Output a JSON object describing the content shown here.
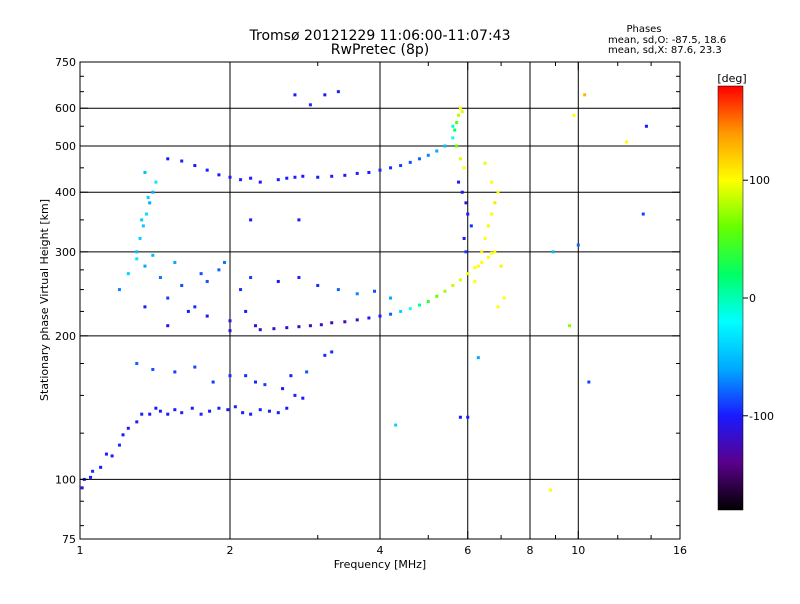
{
  "chart_data": {
    "type": "scatter",
    "title": "Tromsø 20121229 11:06:00-11:07:43",
    "subtitle": "RwPretec (8p)",
    "xlabel": "Frequency [MHz]",
    "ylabel": "Stationary phase Virtual Height [km]",
    "xscale": "log",
    "yscale": "log",
    "xlim": [
      1,
      16
    ],
    "ylim": [
      75,
      750
    ],
    "xticks": [
      {
        "v": 1,
        "label": "1"
      },
      {
        "v": 2,
        "label": "2"
      },
      {
        "v": 4,
        "label": "4"
      },
      {
        "v": 6,
        "label": "6"
      },
      {
        "v": 8,
        "label": "8"
      },
      {
        "v": 10,
        "label": "10"
      },
      {
        "v": 16,
        "label": "16"
      }
    ],
    "xgrid": [
      2,
      4,
      6,
      8,
      10
    ],
    "yticks": [
      {
        "v": 75,
        "label": "75"
      },
      {
        "v": 100,
        "label": "100"
      },
      {
        "v": 200,
        "label": "200"
      },
      {
        "v": 300,
        "label": "300"
      },
      {
        "v": 400,
        "label": "400"
      },
      {
        "v": 500,
        "label": "500"
      },
      {
        "v": 600,
        "label": "600"
      },
      {
        "v": 750,
        "label": "750"
      }
    ],
    "ygrid": [
      100,
      200,
      300,
      400,
      500,
      600
    ],
    "grid": true,
    "stats": {
      "heading": "Phases",
      "line_o": "mean, sd,O: -87.5, 18.6",
      "line_x": "mean, sd,X:  87.6, 23.3"
    },
    "colorbar": {
      "label": "[deg]",
      "range": [
        -180,
        180
      ],
      "ticks": [
        {
          "v": 100,
          "label": "100"
        },
        {
          "v": 0,
          "label": "0"
        },
        {
          "v": -100,
          "label": "-100"
        }
      ],
      "stops": [
        "#000000",
        "#5a008a",
        "#1a1aff",
        "#00aaff",
        "#00ffff",
        "#00ff66",
        "#66ff00",
        "#ffff00",
        "#ff9900",
        "#ff0000"
      ]
    },
    "series": [
      {
        "x": [
          1.01,
          1.02,
          1.05,
          1.06,
          1.1,
          1.13,
          1.16,
          1.2,
          1.22,
          1.25,
          1.3,
          1.33,
          1.38,
          1.42,
          1.45,
          1.5,
          1.55,
          1.6,
          1.68,
          1.75,
          1.82,
          1.9,
          1.98,
          2.05,
          2.12
        ],
        "y": [
          96,
          100,
          101,
          104,
          106,
          113,
          112,
          118,
          124,
          128,
          132,
          137,
          137,
          141,
          139,
          137,
          140,
          138,
          141,
          137,
          139,
          141,
          140,
          142,
          138
        ],
        "phase": [
          -110,
          -105,
          -100,
          -95,
          -100,
          -98,
          -102,
          -96,
          -100,
          -105,
          -100,
          -98,
          -100,
          -102,
          -99,
          -101,
          -100,
          -98,
          -102,
          -97,
          -100,
          -99,
          -101,
          -98,
          -100
        ]
      },
      {
        "x": [
          2.2,
          2.3,
          2.4,
          2.5,
          2.6,
          2.7,
          2.8,
          2.15,
          2.25,
          2.55,
          2.65,
          1.3,
          1.4,
          1.55,
          1.7,
          1.85,
          2.0,
          2.35,
          2.85,
          3.1,
          3.2
        ],
        "y": [
          137,
          140,
          139,
          138,
          141,
          150,
          148,
          165,
          160,
          155,
          165,
          175,
          170,
          168,
          172,
          160,
          165,
          158,
          168,
          182,
          185
        ],
        "phase": [
          -100,
          -98,
          -102,
          -99,
          -100,
          -97,
          -101,
          -95,
          -98,
          -100,
          -99,
          -80,
          -85,
          -90,
          -88,
          -92,
          -95,
          -90,
          -85,
          -95,
          -97
        ]
      },
      {
        "x": [
          2.3,
          2.45,
          2.6,
          2.75,
          2.9,
          3.05,
          3.2,
          3.4,
          3.6,
          3.8,
          4.0,
          4.2,
          4.4,
          4.6,
          4.8,
          5.0,
          5.2,
          5.4,
          5.6,
          5.8,
          6.0,
          6.2,
          6.4,
          6.6,
          6.7,
          6.8
        ],
        "y": [
          206,
          207,
          208,
          209,
          210,
          211,
          213,
          214,
          216,
          218,
          220,
          222,
          225,
          228,
          232,
          236,
          242,
          248,
          255,
          262,
          270,
          278,
          285,
          292,
          298,
          300
        ],
        "phase": [
          -115,
          -118,
          -120,
          -122,
          -125,
          -126,
          -128,
          -125,
          -120,
          -110,
          -100,
          -80,
          -40,
          -20,
          10,
          40,
          60,
          75,
          85,
          90,
          95,
          100,
          100,
          100,
          100,
          100
        ]
      },
      {
        "x": [
          1.2,
          1.25,
          1.3,
          1.35,
          1.4,
          1.45,
          1.5,
          1.55,
          1.6,
          1.7,
          1.8,
          1.9,
          2.0,
          2.1,
          2.2,
          1.35,
          1.5,
          1.65,
          1.8,
          2.0,
          2.25,
          2.5,
          2.75,
          3.0,
          3.3,
          3.6,
          3.9,
          4.2,
          1.75,
          1.95,
          2.15
        ],
        "y": [
          250,
          270,
          290,
          280,
          295,
          265,
          240,
          285,
          255,
          230,
          260,
          275,
          215,
          250,
          265,
          230,
          210,
          225,
          220,
          205,
          210,
          260,
          265,
          255,
          250,
          245,
          248,
          240,
          270,
          285,
          225
        ],
        "phase": [
          -70,
          -40,
          -30,
          -60,
          -50,
          -75,
          -90,
          -60,
          -85,
          -95,
          -85,
          -80,
          -110,
          -95,
          -90,
          -100,
          -105,
          -100,
          -108,
          -112,
          -110,
          -100,
          -98,
          -95,
          -80,
          -70,
          -85,
          -60,
          -85,
          -75,
          -100
        ]
      },
      {
        "x": [
          1.5,
          1.6,
          1.7,
          1.8,
          1.9,
          2.0,
          2.1,
          2.2,
          2.3,
          2.5,
          2.6,
          2.7,
          2.8,
          3.0,
          3.2,
          3.4,
          3.6,
          3.8,
          4.0,
          4.2,
          4.4,
          4.6,
          4.8,
          5.0,
          5.2,
          5.4
        ],
        "y": [
          470,
          465,
          455,
          445,
          435,
          430,
          425,
          428,
          420,
          425,
          428,
          430,
          432,
          430,
          432,
          434,
          438,
          440,
          445,
          450,
          455,
          462,
          470,
          478,
          488,
          500
        ],
        "phase": [
          -100,
          -98,
          -102,
          -99,
          -100,
          -101,
          -97,
          -100,
          -103,
          -99,
          -100,
          -98,
          -101,
          -100,
          -99,
          -102,
          -98,
          -100,
          -97,
          -95,
          -90,
          -85,
          -80,
          -70,
          -60,
          -50
        ]
      },
      {
        "x": [
          5.6,
          5.65,
          5.7,
          5.75,
          5.8,
          5.85,
          5.6,
          5.7,
          5.8,
          5.9,
          5.75,
          5.85,
          5.95,
          6.0,
          6.1,
          5.9,
          5.95
        ],
        "y": [
          520,
          540,
          560,
          580,
          600,
          590,
          550,
          500,
          470,
          450,
          420,
          400,
          380,
          360,
          340,
          320,
          300
        ],
        "phase": [
          -20,
          20,
          50,
          80,
          100,
          90,
          -10,
          60,
          90,
          100,
          -100,
          -100,
          -110,
          -100,
          -95,
          -100,
          -90
        ]
      },
      {
        "x": [
          1.3,
          1.32,
          1.34,
          1.36,
          1.38,
          1.4,
          1.42,
          1.35,
          1.37,
          1.33
        ],
        "y": [
          300,
          320,
          340,
          360,
          380,
          400,
          420,
          440,
          390,
          350
        ],
        "phase": [
          -50,
          -40,
          -45,
          -35,
          -60,
          -55,
          -30,
          -50,
          -40,
          -45
        ]
      },
      {
        "x": [
          6.2,
          6.3,
          6.4,
          6.5,
          6.6,
          6.7,
          6.8,
          6.9,
          7.0,
          7.1,
          6.5,
          6.7,
          6.9
        ],
        "y": [
          260,
          280,
          300,
          320,
          340,
          360,
          380,
          400,
          280,
          240,
          460,
          420,
          230
        ],
        "phase": [
          100,
          100,
          105,
          100,
          95,
          100,
          110,
          100,
          105,
          100,
          95,
          100,
          100
        ]
      },
      {
        "x": [
          2.7,
          2.9,
          3.1,
          3.3,
          2.2,
          2.75,
          10.3,
          12.5,
          13.7,
          13.5,
          8.8,
          8.9,
          10.0,
          9.8,
          10.5,
          6.0,
          6.3,
          5.8,
          4.3,
          9.6
        ],
        "y": [
          640,
          610,
          640,
          650,
          350,
          350,
          640,
          510,
          550,
          360,
          95,
          300,
          310,
          580,
          160,
          135,
          180,
          135,
          130,
          210
        ],
        "phase": [
          -100,
          -95,
          -100,
          -98,
          -100,
          -102,
          130,
          100,
          -100,
          -90,
          100,
          -50,
          -80,
          100,
          -90,
          -100,
          -60,
          -100,
          -40,
          70
        ]
      }
    ]
  }
}
